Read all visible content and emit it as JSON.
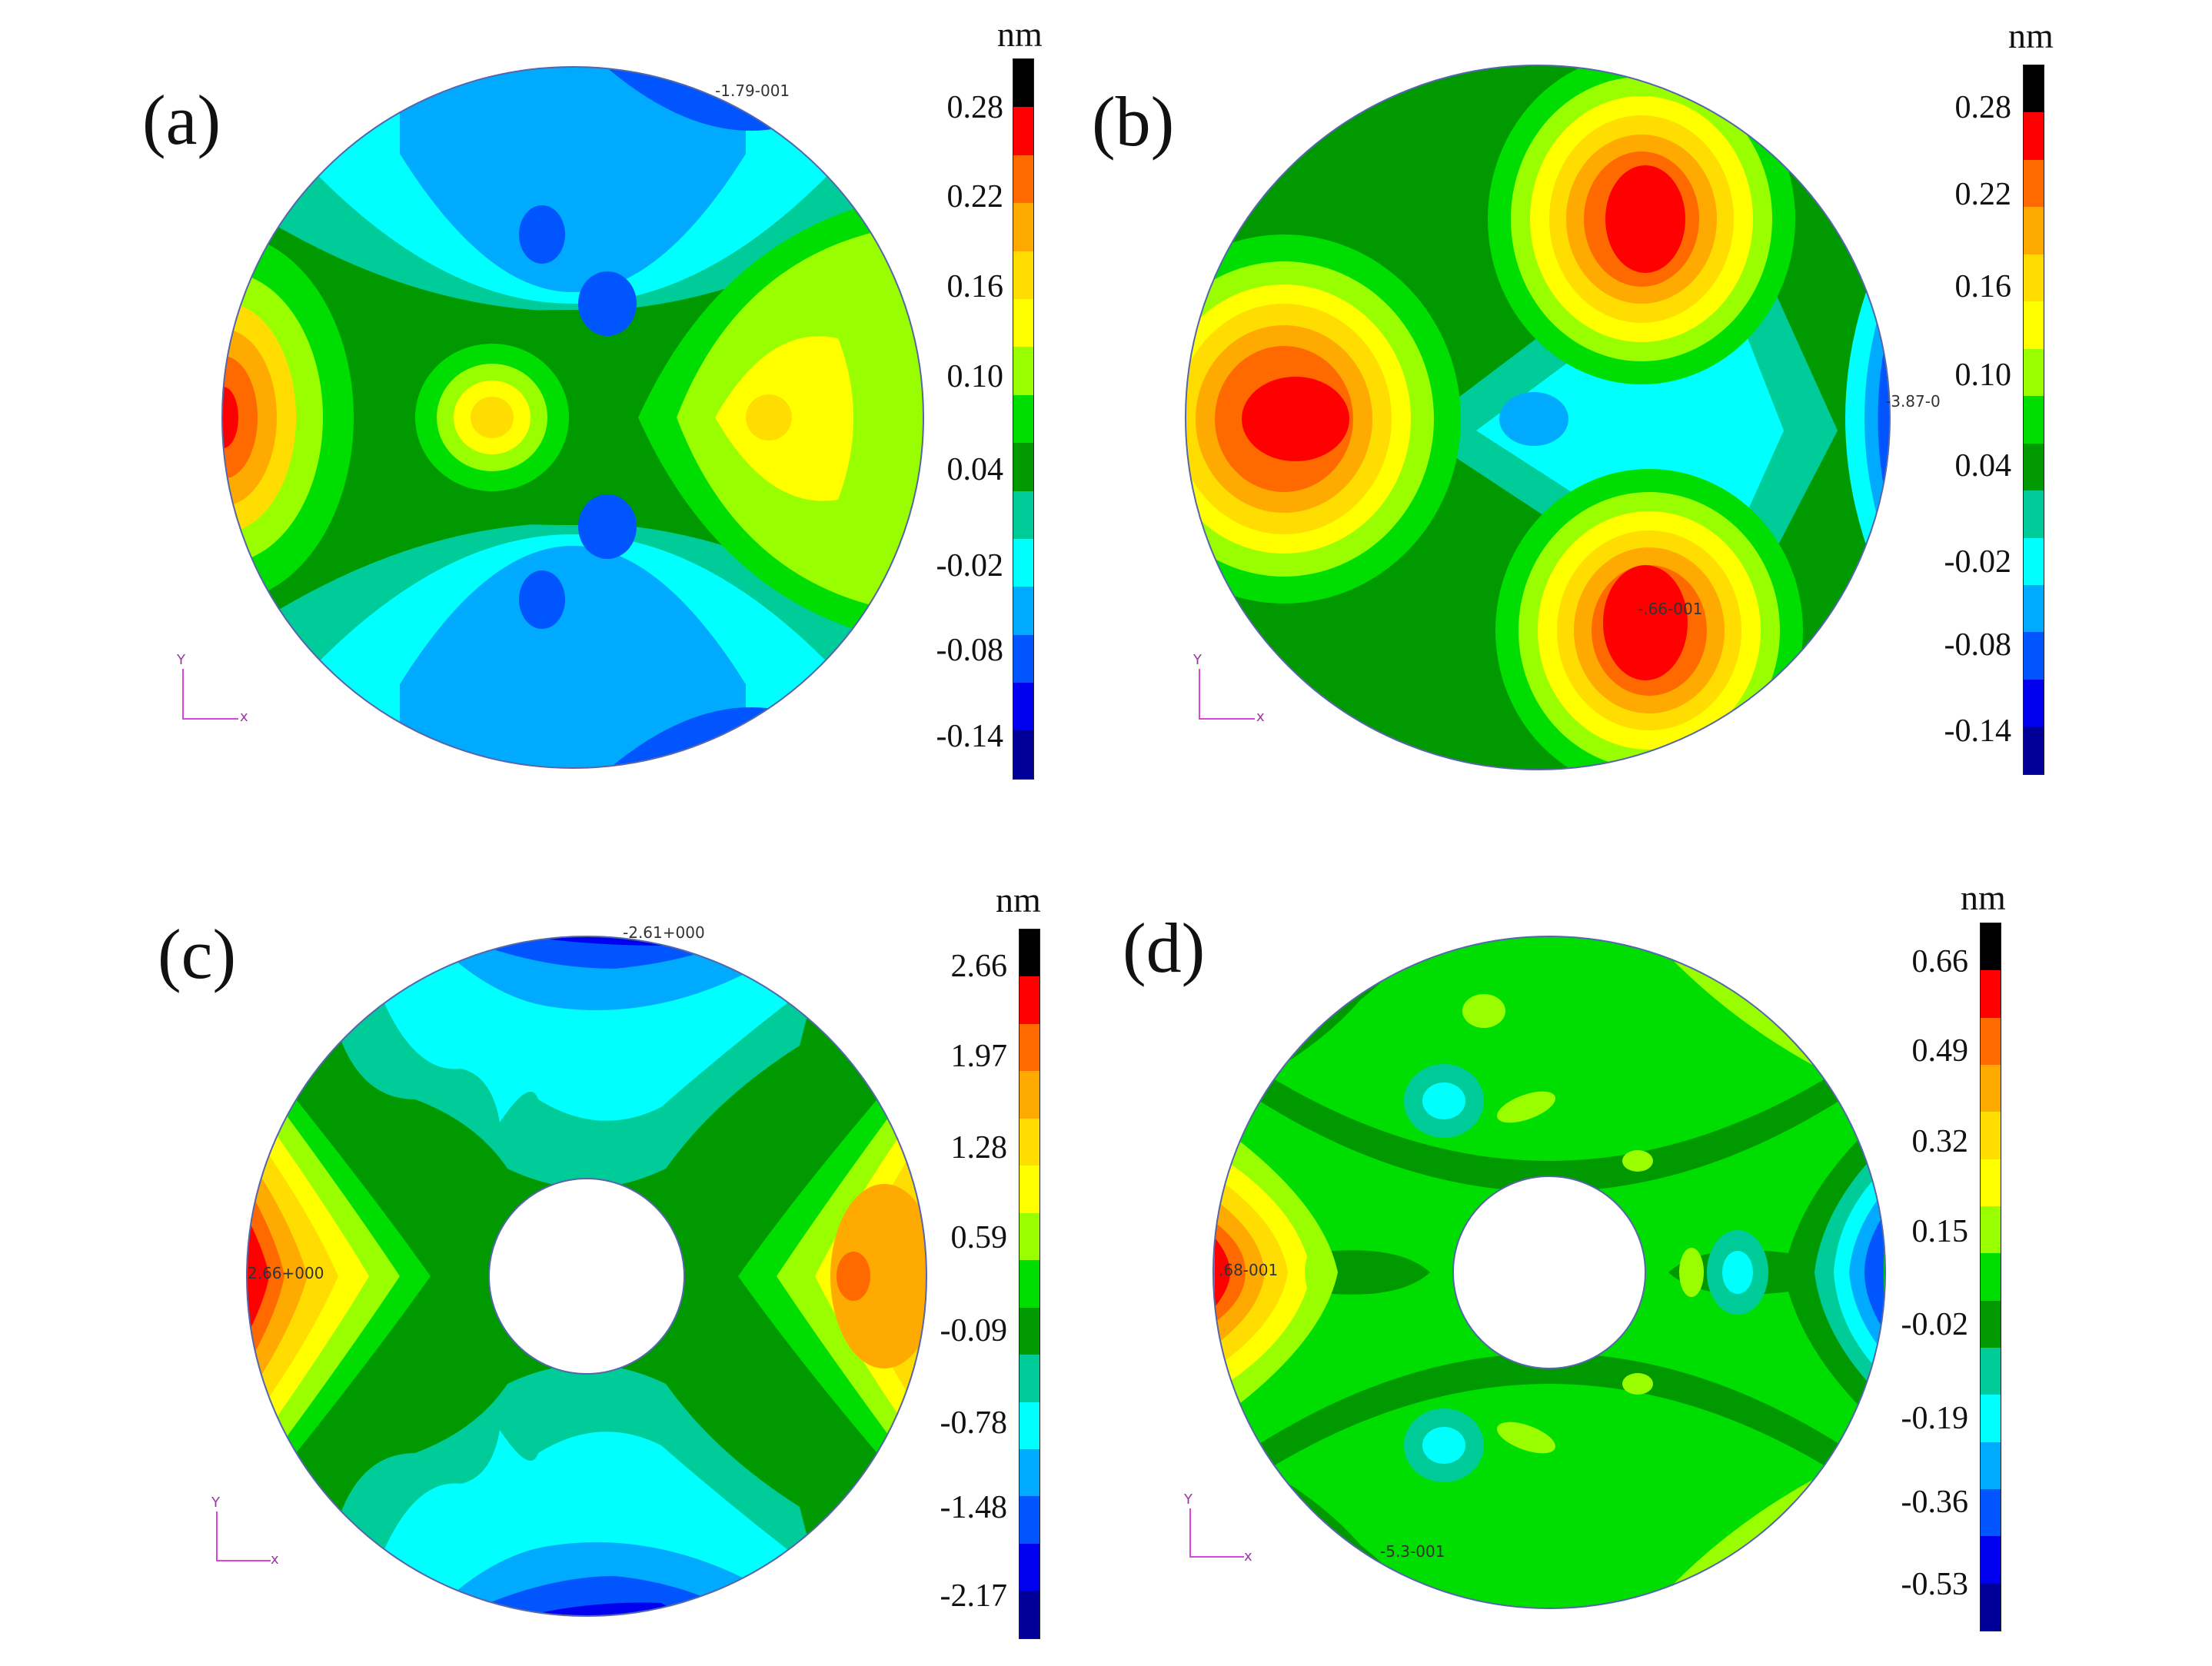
{
  "colormap": [
    "#000000",
    "#ff0000",
    "#ff6a00",
    "#ffaa00",
    "#ffdd00",
    "#ffff00",
    "#99ff00",
    "#00dd00",
    "#009900",
    "#00cc99",
    "#00ffff",
    "#00aaff",
    "#0055ff",
    "#0000ee",
    "#000099"
  ],
  "panels": [
    {
      "label": "(a)",
      "unit": "nm",
      "ticks": [
        "0.28",
        "0.22",
        "0.16",
        "0.10",
        "0.04",
        "-0.02",
        "-0.08",
        "-0.14"
      ],
      "annotations": [
        "-1.79-001"
      ],
      "axis": {
        "y": "Y",
        "x": "x"
      }
    },
    {
      "label": "(b)",
      "unit": "nm",
      "ticks": [
        "0.28",
        "0.22",
        "0.16",
        "0.10",
        "0.04",
        "-0.02",
        "-0.08",
        "-0.14"
      ],
      "annotations": [
        "-3.87-0",
        "-.66-001"
      ],
      "axis": {
        "y": "Y",
        "x": "x"
      }
    },
    {
      "label": "(c)",
      "unit": "nm",
      "ticks": [
        "2.66",
        "1.97",
        "1.28",
        "0.59",
        "-0.09",
        "-0.78",
        "-1.48",
        "-2.17"
      ],
      "annotations": [
        "-2.61+000",
        "2.66+000"
      ],
      "axis": {
        "y": "Y",
        "x": "x"
      }
    },
    {
      "label": "(d)",
      "unit": "nm",
      "ticks": [
        "0.66",
        "0.49",
        "0.32",
        "0.15",
        "-0.02",
        "-0.19",
        "-0.36",
        "-0.53"
      ],
      "annotations": [
        ".68-001",
        "-5.3-001"
      ],
      "axis": {
        "y": "Y",
        "x": "x"
      }
    }
  ]
}
